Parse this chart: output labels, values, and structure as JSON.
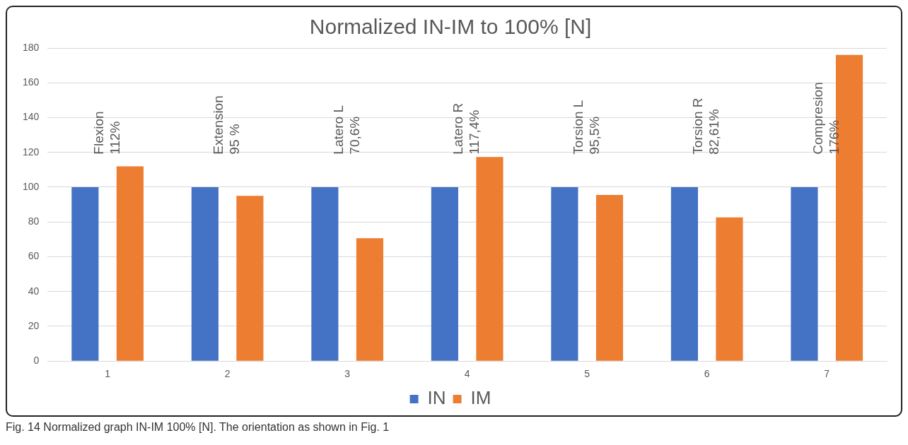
{
  "chart_data": {
    "type": "bar",
    "title": "Normalized IN-IM to 100% [N]",
    "categories": [
      "1",
      "2",
      "3",
      "4",
      "5",
      "6",
      "7"
    ],
    "series": [
      {
        "name": "IN",
        "color": "#4472c4",
        "values": [
          100,
          100,
          100,
          100,
          100,
          100,
          100
        ]
      },
      {
        "name": "IM",
        "color": "#ed7d31",
        "values": [
          112,
          95,
          70.6,
          117.4,
          95.5,
          82.61,
          176
        ]
      }
    ],
    "ylim": [
      0,
      180
    ],
    "yticks": [
      0,
      20,
      40,
      60,
      80,
      100,
      120,
      140,
      160,
      180
    ],
    "grid": "y",
    "legend": "bottom",
    "annotations": [
      "Flexion\n112%",
      "Extension\n95 %",
      "Latero L\n70,6%",
      "Latero R\n117,4%",
      "Torsion L\n95,5%",
      "Torsion R\n82,61%",
      "Compresion\n176%",
      "Fig. 14 Normalized graph IN-IM 100% [N]. The orientation as shown in Fig. 1"
    ]
  }
}
